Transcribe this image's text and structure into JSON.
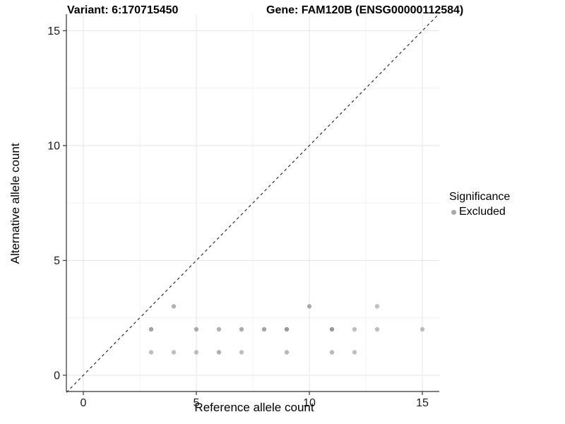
{
  "titles": {
    "variant": "Variant: 6:170715450",
    "gene": "Gene: FAM120B (ENSG00000112584)"
  },
  "chart_data": {
    "type": "scatter",
    "title_left": "Variant: 6:170715450",
    "title_right": "Gene: FAM120B (ENSG00000112584)",
    "xlabel": "Reference allele count",
    "ylabel": "Alternative allele count",
    "xlim": [
      -0.75,
      15.75
    ],
    "ylim": [
      -0.75,
      15.75
    ],
    "x_ticks": [
      0,
      5,
      10,
      15
    ],
    "y_ticks": [
      0,
      5,
      10,
      15
    ],
    "x_minor_gridlines": [
      2.5,
      7.5,
      12.5
    ],
    "y_minor_gridlines": [
      2.5,
      7.5,
      12.5
    ],
    "grid": true,
    "reference_line": {
      "type": "identity y=x",
      "style": "dashed",
      "color": "#1a1a1a"
    },
    "legend": {
      "position": "right",
      "title": "Significance",
      "items": [
        {
          "label": "Excluded",
          "color": "#a9a9a9"
        }
      ]
    },
    "series": [
      {
        "name": "Excluded",
        "color": "#7f7f7f",
        "points": [
          {
            "x": 3,
            "y": 1,
            "a": 0.5
          },
          {
            "x": 4,
            "y": 1,
            "a": 0.5
          },
          {
            "x": 5,
            "y": 1,
            "a": 0.5
          },
          {
            "x": 6,
            "y": 1,
            "a": 0.62
          },
          {
            "x": 7,
            "y": 1,
            "a": 0.5
          },
          {
            "x": 9,
            "y": 1,
            "a": 0.55
          },
          {
            "x": 11,
            "y": 1,
            "a": 0.55
          },
          {
            "x": 12,
            "y": 1,
            "a": 0.5
          },
          {
            "x": 3,
            "y": 2,
            "a": 0.72
          },
          {
            "x": 5,
            "y": 2,
            "a": 0.65
          },
          {
            "x": 6,
            "y": 2,
            "a": 0.6
          },
          {
            "x": 7,
            "y": 2,
            "a": 0.65
          },
          {
            "x": 8,
            "y": 2,
            "a": 0.7
          },
          {
            "x": 9,
            "y": 2,
            "a": 0.8
          },
          {
            "x": 11,
            "y": 2,
            "a": 0.8
          },
          {
            "x": 12,
            "y": 2,
            "a": 0.5
          },
          {
            "x": 13,
            "y": 2,
            "a": 0.5
          },
          {
            "x": 15,
            "y": 2,
            "a": 0.5
          },
          {
            "x": 4,
            "y": 3,
            "a": 0.6
          },
          {
            "x": 10,
            "y": 3,
            "a": 0.65
          },
          {
            "x": 13,
            "y": 3,
            "a": 0.5
          }
        ]
      }
    ]
  },
  "colors": {
    "background": "#ffffff",
    "major_gridline": "#e6e6e6",
    "minor_gridline": "#f1f1f1",
    "axis_line": "#333333",
    "tick_label": "#1a1a1a",
    "point": "#7f7f7f"
  }
}
